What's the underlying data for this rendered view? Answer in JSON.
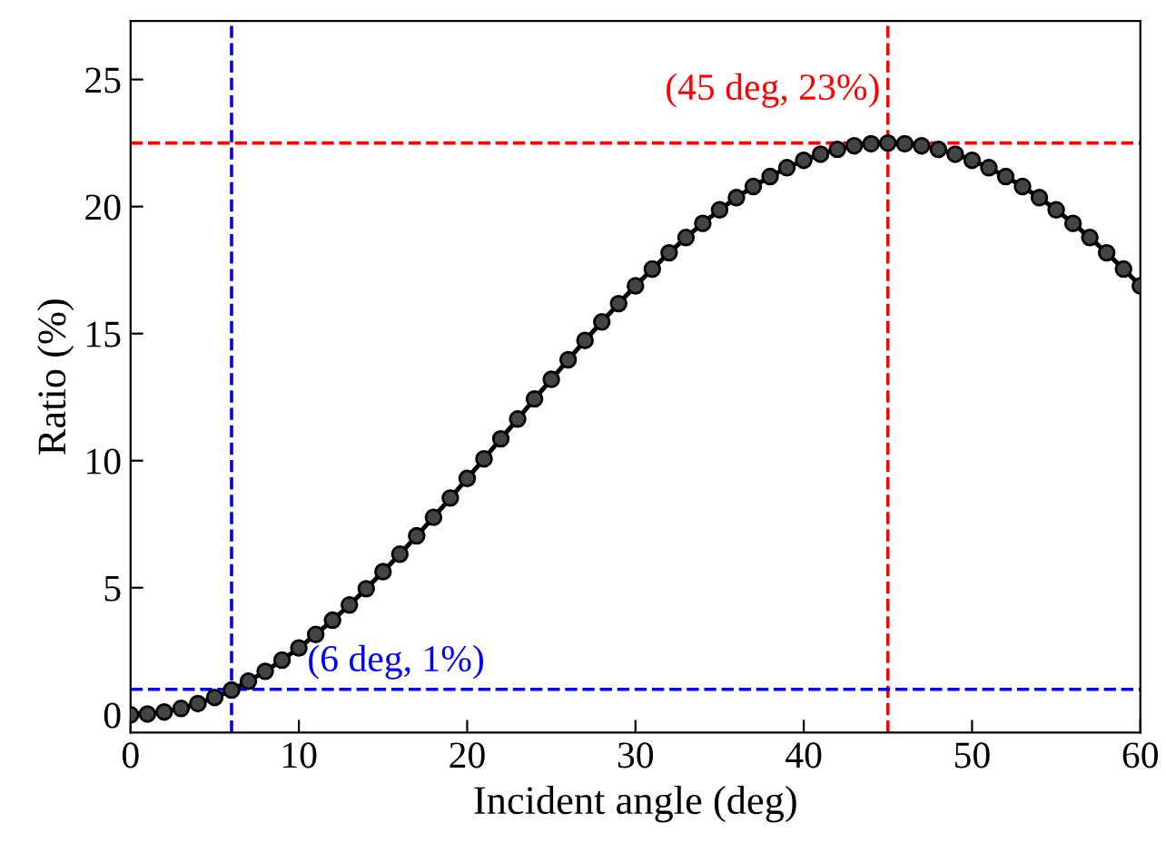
{
  "chart_data": {
    "type": "line",
    "xlabel": "Incident angle (deg)",
    "ylabel": "Ratio (%)",
    "x": [
      0,
      1,
      2,
      3,
      4,
      5,
      6,
      7,
      8,
      9,
      10,
      11,
      12,
      13,
      14,
      15,
      16,
      17,
      18,
      19,
      20,
      21,
      22,
      23,
      24,
      25,
      26,
      27,
      28,
      29,
      30,
      31,
      32,
      33,
      34,
      35,
      36,
      37,
      38,
      39,
      40,
      41,
      42,
      43,
      44,
      45,
      46,
      47,
      48,
      49,
      50,
      51,
      52,
      53,
      54,
      55,
      56,
      57,
      58,
      59,
      60
    ],
    "series": [
      {
        "color": "#000000",
        "values": [
          0,
          0.03,
          0.11,
          0.25,
          0.44,
          0.68,
          0.97,
          1.32,
          1.71,
          2.15,
          2.63,
          3.16,
          3.72,
          4.32,
          4.96,
          5.63,
          6.32,
          7.04,
          7.77,
          8.53,
          9.3,
          10.07,
          10.86,
          11.64,
          12.43,
          13.2,
          13.97,
          14.73,
          15.46,
          16.18,
          16.88,
          17.54,
          18.18,
          18.78,
          19.34,
          19.87,
          20.35,
          20.79,
          21.18,
          21.53,
          21.82,
          22.06,
          22.25,
          22.39,
          22.47,
          22.5,
          22.47,
          22.39,
          22.25,
          22.06,
          21.82,
          21.53,
          21.18,
          20.79,
          20.35,
          19.87,
          19.34,
          18.78,
          18.18,
          17.54,
          16.88
        ]
      }
    ],
    "marker": "circle",
    "line_style": "solid",
    "xlim": [
      0,
      60
    ],
    "ylim": [
      -0.7,
      27.3
    ],
    "xticks": [
      0,
      10,
      20,
      30,
      40,
      50,
      60
    ],
    "yticks": [
      0,
      5,
      10,
      15,
      20,
      25
    ],
    "grid": false,
    "legend": false,
    "ref_lines": [
      {
        "axis": "x",
        "value": 45,
        "color": "#ff0000",
        "line_style": "dashed"
      },
      {
        "axis": "y",
        "value": 22.5,
        "color": "#ff0000",
        "line_style": "dashed"
      },
      {
        "axis": "x",
        "value": 6,
        "color": "#0000ff",
        "line_style": "dashed"
      },
      {
        "axis": "y",
        "value": 1,
        "color": "#0000ff",
        "line_style": "dashed"
      }
    ],
    "annotations": [
      {
        "text": "(45 deg, 23%)",
        "x": 45,
        "y": 22.5
      },
      {
        "text": "(6 deg, 1%)",
        "x": 6,
        "y": 1
      }
    ]
  }
}
